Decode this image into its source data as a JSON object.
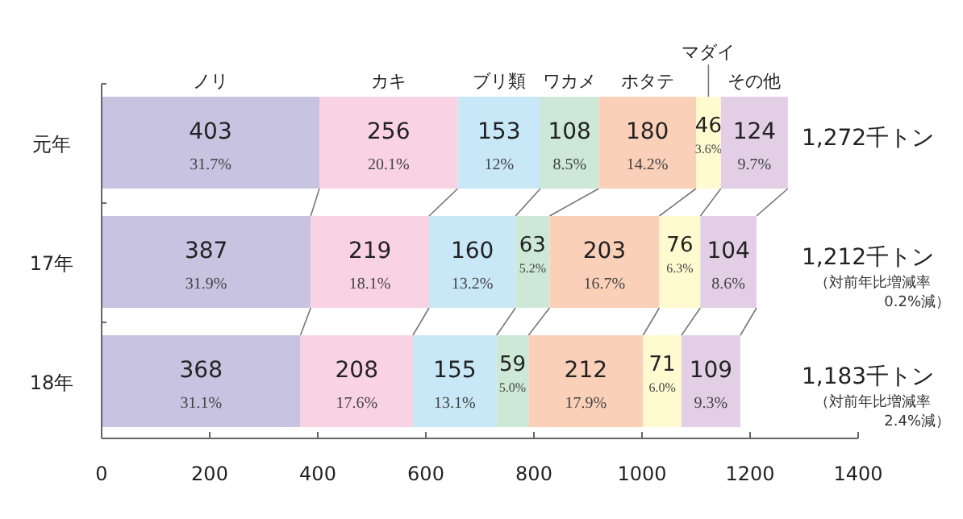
{
  "chart_data": {
    "type": "bar",
    "orientation": "horizontal",
    "stacked": true,
    "categories": [
      "元年",
      "17年",
      "18年"
    ],
    "series": [
      {
        "name": "ノリ",
        "color": "#c7c3e0",
        "values": [
          403,
          387,
          368
        ],
        "value_labels": [
          "403\n31.7%",
          "387\n31.9%",
          "368\n31.1%"
        ]
      },
      {
        "name": "カキ",
        "color": "#f9d3e3",
        "values": [
          256,
          219,
          208
        ],
        "value_labels": [
          "256\n20.1%",
          "219\n18.1%",
          "208\n17.6%"
        ]
      },
      {
        "name": "ブリ類",
        "color": "#c8e8f7",
        "values": [
          153,
          160,
          155
        ],
        "value_labels": [
          "153\n12%",
          "160\n13.2%",
          "155\n13.1%"
        ]
      },
      {
        "name": "ワカメ",
        "color": "#cde8d6",
        "values": [
          108,
          63,
          59
        ],
        "value_labels": [
          "108\n8.5%",
          "63\n5.2%",
          "59\n5.0%"
        ]
      },
      {
        "name": "ホタテ",
        "color": "#fbd0b8",
        "values": [
          180,
          203,
          212
        ],
        "value_labels": [
          "180\n14.2%",
          "203\n16.7%",
          "212\n17.9%"
        ]
      },
      {
        "name": "マダイ",
        "color": "#fffad0",
        "values": [
          46,
          76,
          71
        ],
        "value_labels": [
          "46\n3.6%",
          "76\n6.3%",
          "71\n6.0%"
        ]
      },
      {
        "name": "その他",
        "color": "#e2cfe6",
        "values": [
          124,
          104,
          109
        ],
        "value_labels": [
          "124\n9.7%",
          "104\n8.6%",
          "109\n9.3%"
        ]
      }
    ],
    "totals": [
      "1,272千トン",
      "1,212千トン",
      "1,183千トン"
    ],
    "annotations": [
      "（対前年比増減率 0.2%減）",
      "（対前年比増減率 2.4%減）"
    ],
    "xlim": [
      0,
      1400
    ],
    "xticks": [
      0,
      200,
      400,
      600,
      800,
      1000,
      1200,
      1400
    ]
  }
}
